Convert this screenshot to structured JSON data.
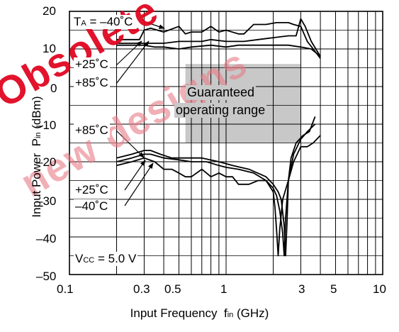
{
  "chart_data": {
    "type": "line",
    "xlabel": "Input Frequency",
    "xlabel_symbol": "f",
    "xlabel_sub": "in",
    "xlabel_unit": "(GHz)",
    "ylabel": "Input Power",
    "ylabel_symbol": "P",
    "ylabel_sub": "in",
    "ylabel_unit": "(dBm)",
    "xscale": "log",
    "xlim": [
      0.1,
      10
    ],
    "ylim": [
      -50,
      20
    ],
    "grid": true,
    "x_ticks": [
      "0.1",
      "0.3",
      "0.5",
      "1",
      "3",
      "5",
      "10"
    ],
    "x_tick_values": [
      0.1,
      0.3,
      0.5,
      1,
      3,
      5,
      10
    ],
    "y_ticks": [
      "20",
      "10",
      "0",
      "–10",
      "–20",
      "–30",
      "–40",
      "–50"
    ],
    "y_tick_values": [
      20,
      10,
      0,
      -10,
      -20,
      -30,
      -40,
      -50
    ],
    "region": {
      "label_line1": "Guaranteed",
      "label_line2": "operating range",
      "x": [
        0.55,
        3.0
      ],
      "y": [
        -15,
        6
      ],
      "color": "#c8c8c8"
    },
    "annotations": {
      "ta_prefix": "T",
      "ta_sub": "A",
      "ta_value": " = –40˚C",
      "upper_25": "+25˚C",
      "upper_85": "+85˚C",
      "lower_85": "+85˚C",
      "lower_25": "+25˚C",
      "lower_m40": "–40˚C",
      "vcc_prefix": "V",
      "vcc_sub": "CC",
      "vcc_value": " = 5.0 V"
    },
    "series": [
      {
        "group": "upper",
        "temp": "–40˚C",
        "x": [
          0.2,
          0.28,
          0.3,
          0.33,
          0.4,
          0.5,
          0.55,
          0.6,
          0.7,
          0.8,
          0.9,
          1.0,
          1.2,
          1.3,
          1.5,
          1.8,
          2.1,
          2.3,
          2.5,
          2.7,
          3.0,
          3.3,
          3.6,
          4.0
        ],
        "y": [
          12.5,
          12.5,
          15.0,
          15.5,
          14.5,
          16.0,
          14.0,
          14.5,
          14.5,
          16.0,
          14.5,
          15.0,
          14.0,
          14.0,
          16.5,
          16.5,
          17.0,
          17.0,
          17.0,
          16.5,
          16.0,
          12.0,
          10.0,
          7.5
        ]
      },
      {
        "group": "upper",
        "temp": "+25˚C",
        "x": [
          0.2,
          0.3,
          0.4,
          0.5,
          0.6,
          0.7,
          0.8,
          1.0,
          1.3,
          1.6,
          2.0,
          2.5,
          2.8,
          3.0,
          3.2,
          3.5,
          4.0
        ],
        "y": [
          11.5,
          11.5,
          11.5,
          12.0,
          12.0,
          12.0,
          12.5,
          12.0,
          12.0,
          12.5,
          13.0,
          13.5,
          13.5,
          18.0,
          16.0,
          12.0,
          8.0
        ]
      },
      {
        "group": "upper",
        "temp": "+85˚C",
        "x": [
          0.2,
          0.3,
          0.35,
          0.4,
          0.5,
          0.6,
          0.8,
          1.0,
          1.2,
          1.5,
          2.0,
          2.5,
          3.0,
          3.5,
          4.0
        ],
        "y": [
          11.0,
          11.0,
          10.5,
          10.5,
          10.0,
          10.5,
          11.0,
          10.5,
          11.0,
          11.0,
          11.0,
          11.0,
          10.5,
          10.0,
          8.0
        ]
      },
      {
        "group": "lower",
        "temp": "+85˚C",
        "x": [
          0.2,
          0.25,
          0.3,
          0.33,
          0.38,
          0.45,
          0.55,
          0.7,
          0.9,
          1.1,
          1.4,
          1.8,
          2.0,
          2.15,
          2.25,
          2.35,
          2.4,
          2.45,
          2.5,
          2.6,
          2.8,
          3.1,
          3.4,
          3.7
        ],
        "y": [
          -19,
          -18,
          -17,
          -17,
          -18,
          -19,
          -19,
          -19,
          -20,
          -21,
          -22,
          -24,
          -26,
          -28,
          -30,
          -37,
          -45,
          -36,
          -25,
          -19,
          -15,
          -13,
          -12,
          -8
        ]
      },
      {
        "group": "lower",
        "temp": "+25˚C",
        "x": [
          0.2,
          0.25,
          0.3,
          0.33,
          0.4,
          0.5,
          0.6,
          0.75,
          0.9,
          1.0,
          1.2,
          1.5,
          1.8,
          2.0,
          2.1,
          2.2,
          2.3,
          2.35,
          2.4,
          2.5,
          2.7,
          3.0,
          3.3,
          3.7
        ],
        "y": [
          -20,
          -19,
          -18,
          -18,
          -19,
          -19.5,
          -20,
          -20,
          -21,
          -21.5,
          -22,
          -23,
          -25,
          -27,
          -29,
          -33,
          -39,
          -45,
          -35,
          -25,
          -18,
          -14,
          -12,
          -10
        ]
      },
      {
        "group": "lower",
        "temp": "–40˚C",
        "x": [
          0.2,
          0.25,
          0.3,
          0.35,
          0.4,
          0.45,
          0.5,
          0.55,
          0.6,
          0.7,
          0.75,
          0.8,
          0.9,
          1.0,
          1.1,
          1.2,
          1.4,
          1.6,
          1.8,
          2.0,
          2.05,
          2.1,
          2.15,
          2.2,
          2.3,
          2.5,
          2.7,
          3.0,
          3.3,
          3.6,
          4.0
        ],
        "y": [
          -21,
          -20,
          -19,
          -20,
          -22,
          -22,
          -23,
          -24,
          -24,
          -22,
          -23,
          -24,
          -23,
          -24,
          -24,
          -26,
          -26,
          -25,
          -25,
          -28,
          -32,
          -38,
          -45,
          -38,
          -30,
          -25,
          -20,
          -16,
          -16,
          -15,
          -13
        ]
      }
    ]
  },
  "watermark": {
    "line1": "Obsolete",
    "line2": "new designs",
    "color": "#e0001b"
  }
}
